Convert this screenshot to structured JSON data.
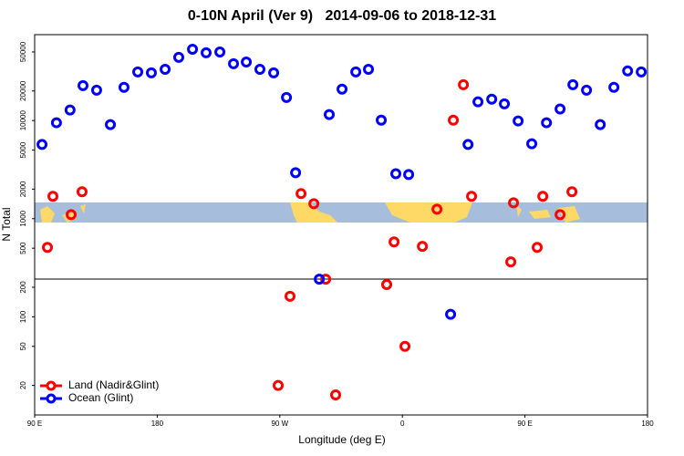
{
  "chart_data": {
    "type": "scatter",
    "title": "0-10N April (Ver 9)   2014-09-06 to 2018-12-31",
    "x_label": "Longitude (deg E)",
    "y_label": "N Total",
    "xlim": [
      90,
      540
    ],
    "ylim": [
      10,
      75000
    ],
    "log_y": true,
    "legend": "bottom-left",
    "xticks": [
      {
        "value": 90,
        "label": "90 E"
      },
      {
        "value": 180,
        "label": "180"
      },
      {
        "value": 270,
        "label": "90 W"
      },
      {
        "value": 360,
        "label": "0"
      },
      {
        "value": 450,
        "label": "90 E"
      },
      {
        "value": 540,
        "label": "180"
      }
    ],
    "yticks": [
      20,
      50,
      100,
      200,
      500,
      1000,
      2000,
      5000,
      10000,
      20000,
      50000
    ],
    "series": [
      {
        "name": "Land (Nadir&Glint)",
        "color": "#ff0000",
        "x": [
          99.4,
          103.4,
          116.8,
          124.8,
          268.8,
          277.5,
          285.6,
          295,
          303.7,
          311,
          348.5,
          353.9,
          361.9,
          374.7,
          385.4,
          397.4,
          404.8,
          410.8,
          439.6,
          441.6,
          459,
          463.1,
          475.8,
          484.5
        ],
        "values": [
          510,
          1690,
          1100,
          1880,
          20,
          162,
          1800,
          1420,
          242,
          16,
          213,
          580,
          50,
          522,
          1250,
          10100,
          23200,
          1690,
          363,
          1450,
          510,
          1690,
          1100,
          1880
        ]
      },
      {
        "name": "Ocean (Glint)",
        "color": "#0000ff",
        "x": [
          95.4,
          106,
          116,
          125.5,
          135.5,
          145.6,
          155.6,
          165.7,
          175.7,
          185.8,
          195.8,
          205.9,
          215.9,
          226,
          236,
          245.4,
          255.4,
          265.5,
          274.9,
          281.6,
          299,
          306.3,
          315.7,
          325.8,
          335.1,
          344.5,
          355.2,
          364.6,
          395.4,
          408.2,
          415.5,
          425.6,
          434.9,
          445,
          455,
          465.8,
          475.8,
          485.2,
          495.2,
          505.3,
          515.3,
          525.4,
          535.4
        ],
        "values": [
          5700,
          9500,
          12800,
          22700,
          20400,
          9080,
          21800,
          31300,
          30600,
          33300,
          44000,
          53300,
          49000,
          50000,
          37900,
          39500,
          33300,
          30600,
          17200,
          2940,
          242,
          11500,
          20900,
          31300,
          33300,
          10100,
          2870,
          2820,
          106,
          5700,
          15500,
          16500,
          14800,
          9900,
          5800,
          9500,
          13100,
          23200,
          20400,
          9080,
          21800,
          32000,
          31300
        ]
      }
    ]
  }
}
